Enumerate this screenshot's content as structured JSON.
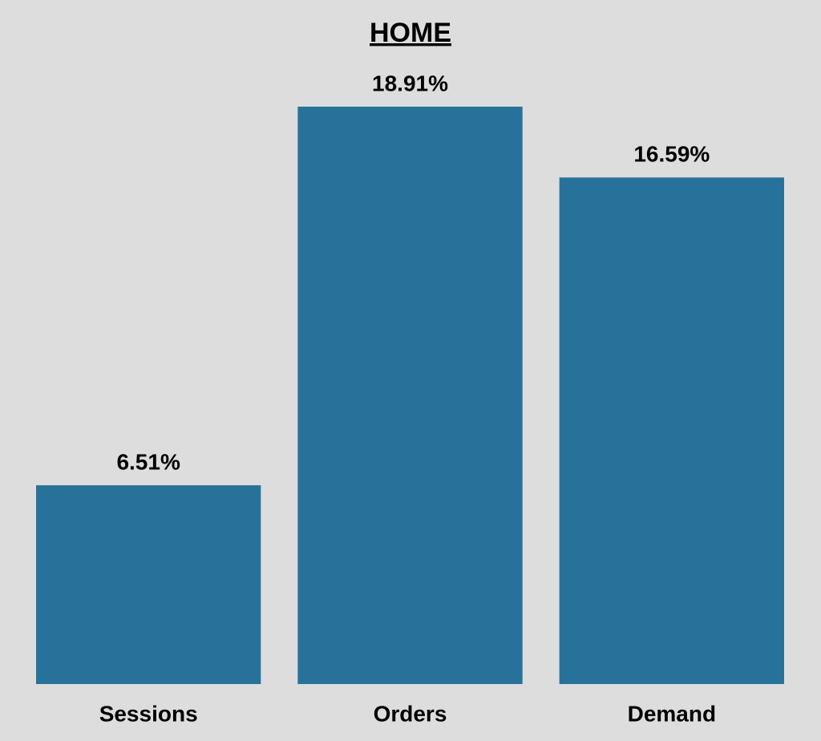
{
  "chart_data": {
    "type": "bar",
    "title": "HOME",
    "categories": [
      "Sessions",
      "Orders",
      "Demand"
    ],
    "values": [
      6.51,
      18.91,
      16.59
    ],
    "value_labels": [
      "6.51%",
      "18.91%",
      "16.59%"
    ],
    "color": "#27729a"
  }
}
